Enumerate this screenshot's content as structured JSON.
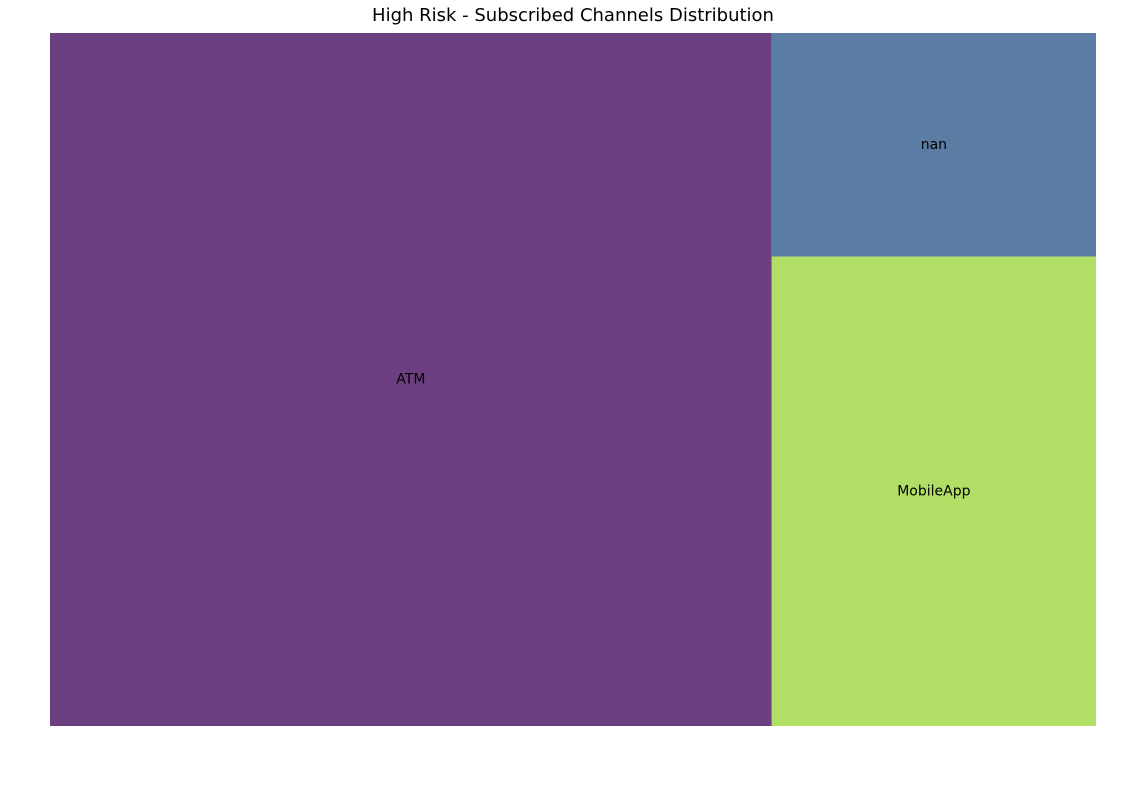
{
  "chart_data": {
    "type": "treemap",
    "title": "High Risk - Subscribed Channels Distribution",
    "categories": [
      "ATM",
      "MobileApp",
      "nan"
    ],
    "values": [
      69,
      21,
      10
    ],
    "colors": [
      "#6c3f81",
      "#b1df65",
      "#5b7da3"
    ]
  }
}
